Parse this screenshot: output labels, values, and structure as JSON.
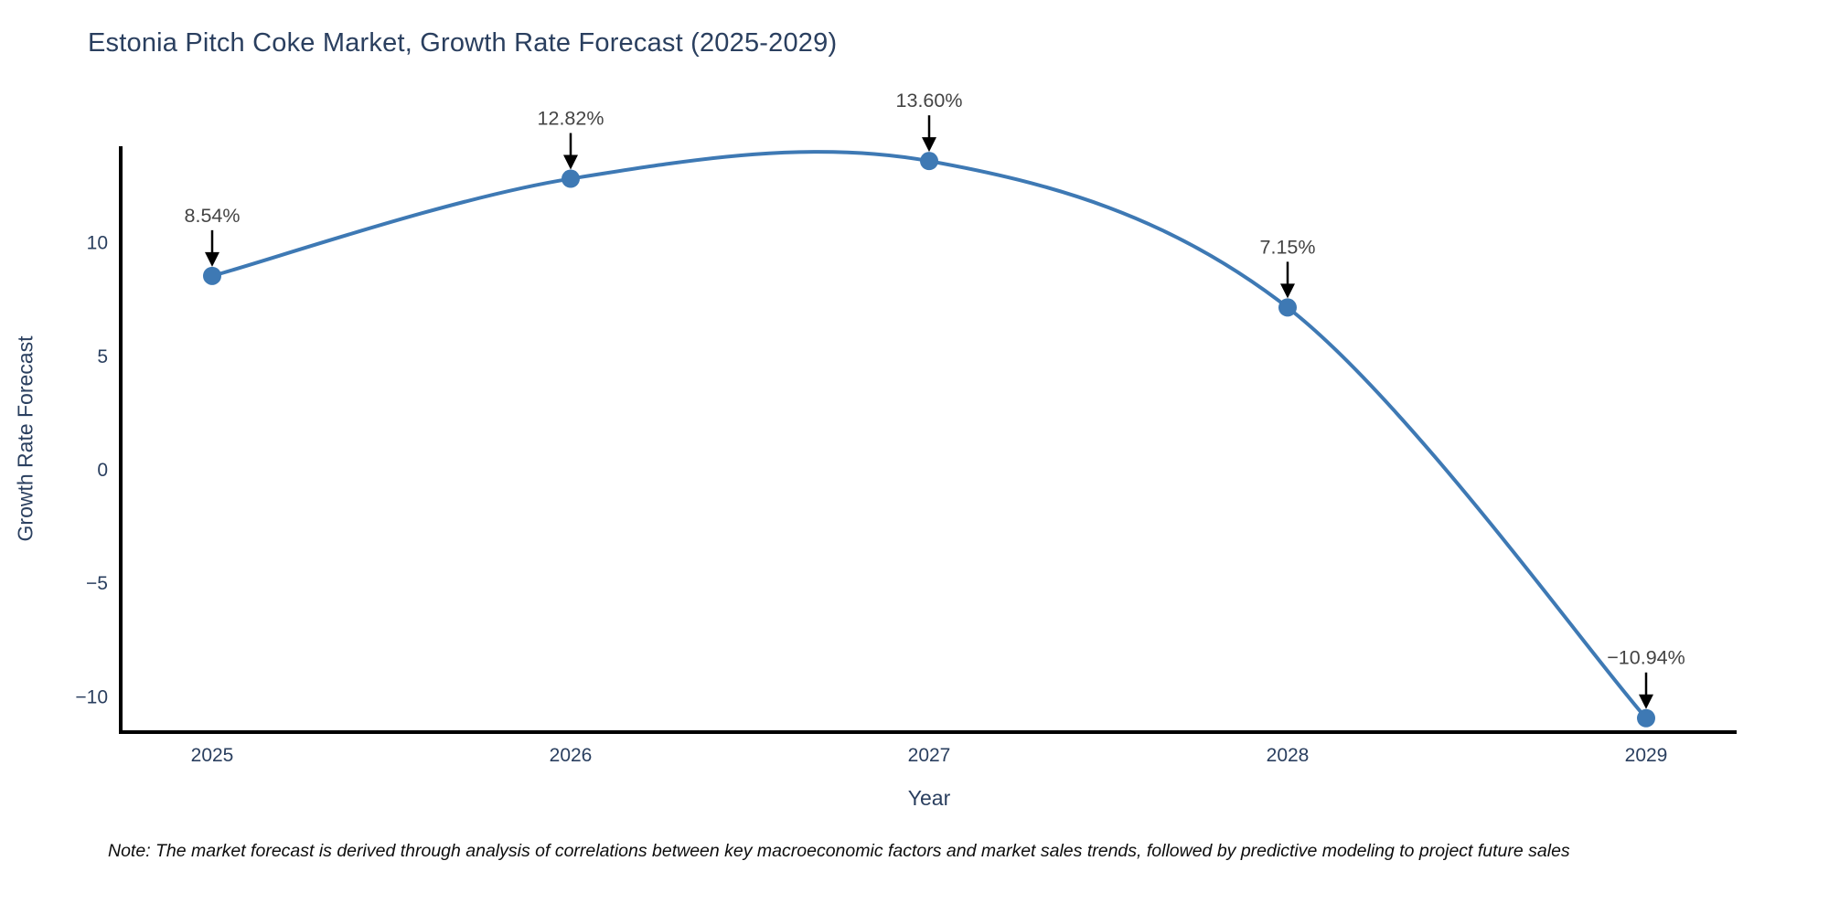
{
  "figure": {
    "note": "Note: The market forecast is derived through analysis of correlations between key macroeconomic factors and market sales trends, followed by predictive modeling to project future sales"
  },
  "chart_data": {
    "type": "line",
    "title": "Estonia Pitch Coke Market, Growth Rate Forecast (2025-2029)",
    "xlabel": "Year",
    "ylabel": "Growth Rate Forecast",
    "x": [
      2025,
      2026,
      2027,
      2028,
      2029
    ],
    "values": [
      8.54,
      12.82,
      13.6,
      7.15,
      -10.94
    ],
    "point_labels": [
      "8.54%",
      "12.82%",
      "13.60%",
      "7.15%",
      "−10.94%"
    ],
    "yticks": [
      10,
      5,
      0,
      -5,
      -10
    ],
    "ylim": [
      -11.9,
      14.6
    ],
    "line_shape": "spline",
    "grid": false,
    "legend": "none",
    "colors": {
      "line": "#3E79B4",
      "marker": "#3E79B4",
      "axis": "#000000",
      "axis_text": "#2a3f5f",
      "annotation_text": "#444444",
      "arrow": "#000000",
      "background": "#ffffff"
    }
  }
}
